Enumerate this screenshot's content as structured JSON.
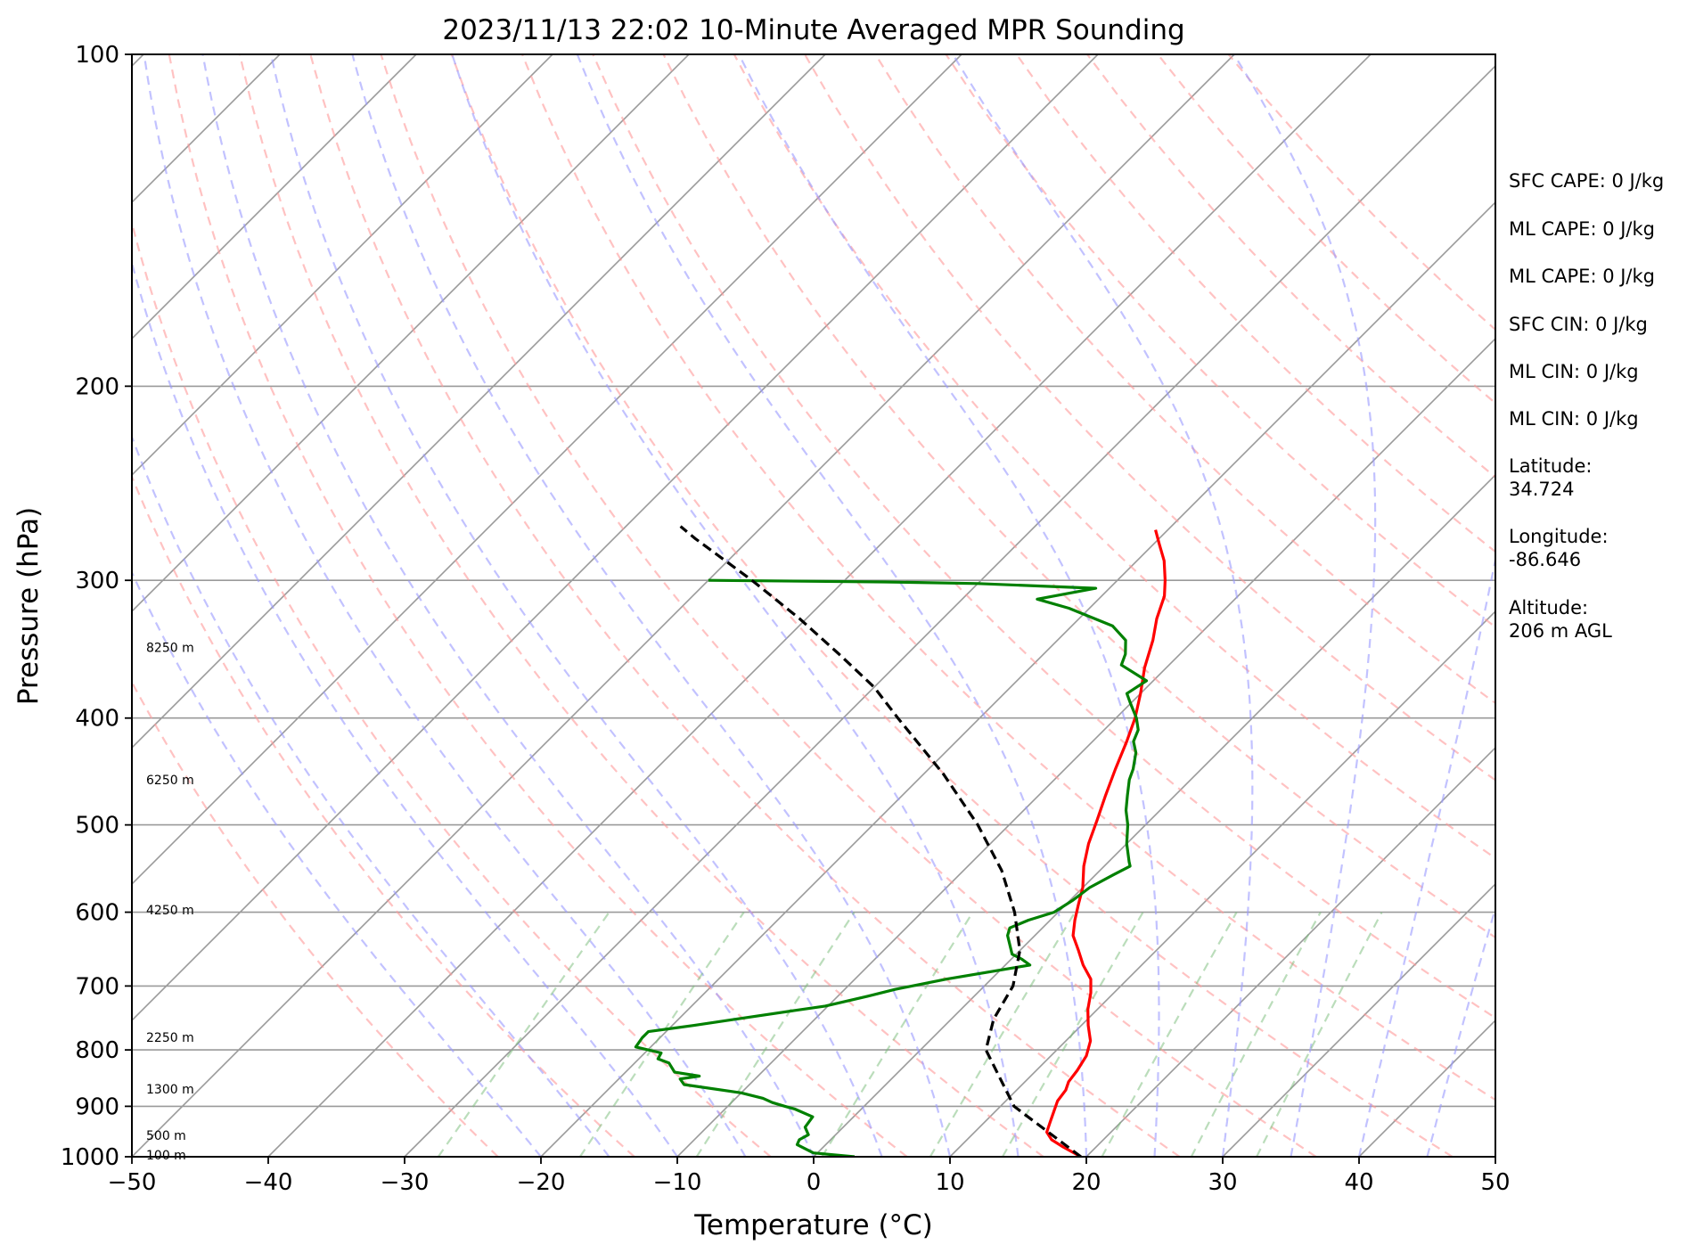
{
  "chart_data": {
    "type": "line",
    "title": "2023/11/13 22:02 10-Minute Averaged MPR Sounding",
    "xlabel": "Temperature (°C)",
    "ylabel": "Pressure (hPa)",
    "xlim": [
      -50,
      50
    ],
    "ylim": [
      1000,
      100
    ],
    "y_scale": "log",
    "grid": true,
    "x_ticks": [
      "−50",
      "−40",
      "−30",
      "−20",
      "−10",
      "0",
      "10",
      "20",
      "30",
      "40",
      "50"
    ],
    "y_ticks": [
      "100",
      "200",
      "300",
      "400",
      "500",
      "600",
      "700",
      "800",
      "900",
      "1000"
    ],
    "skew": 45,
    "series": [
      {
        "color": "#ff0000",
        "style": "solid",
        "points": [
          [
            19.6,
            1000
          ],
          [
            17.6,
            980
          ],
          [
            16.2,
            965
          ],
          [
            15.3,
            950
          ],
          [
            14.8,
            930
          ],
          [
            14.3,
            910
          ],
          [
            13.8,
            890
          ],
          [
            13.6,
            870
          ],
          [
            13.2,
            855
          ],
          [
            13.0,
            835
          ],
          [
            12.6,
            810
          ],
          [
            11.8,
            785
          ],
          [
            10.5,
            760
          ],
          [
            9.3,
            735
          ],
          [
            8.3,
            710
          ],
          [
            7.3,
            690
          ],
          [
            5.7,
            670
          ],
          [
            4.3,
            650
          ],
          [
            2.8,
            630
          ],
          [
            1.8,
            610
          ],
          [
            0.9,
            590
          ],
          [
            0.0,
            570
          ],
          [
            -1.5,
            545
          ],
          [
            -2.8,
            520
          ],
          [
            -3.9,
            495
          ],
          [
            -5.1,
            470
          ],
          [
            -6.3,
            445
          ],
          [
            -7.5,
            420
          ],
          [
            -8.6,
            400
          ],
          [
            -10.0,
            380
          ],
          [
            -11.6,
            360
          ],
          [
            -13.0,
            340
          ],
          [
            -14.3,
            325
          ],
          [
            -15.4,
            310
          ],
          [
            -16.5,
            300
          ],
          [
            -18.0,
            288
          ],
          [
            -19.6,
            278
          ],
          [
            -20.9,
            270
          ]
        ]
      },
      {
        "color": "#008000",
        "style": "solid",
        "points": [
          [
            3.0,
            1000
          ],
          [
            -0.3,
            992
          ],
          [
            -2.1,
            975
          ],
          [
            -2.3,
            965
          ],
          [
            -2.0,
            955
          ],
          [
            -2.8,
            940
          ],
          [
            -3.0,
            920
          ],
          [
            -4.9,
            905
          ],
          [
            -5.8,
            900
          ],
          [
            -7.0,
            893
          ],
          [
            -8.0,
            885
          ],
          [
            -10.0,
            875
          ],
          [
            -14.8,
            860
          ],
          [
            -15.5,
            850
          ],
          [
            -14.3,
            845
          ],
          [
            -16.4,
            838
          ],
          [
            -17.5,
            822
          ],
          [
            -18.6,
            815
          ],
          [
            -18.8,
            805
          ],
          [
            -21.1,
            795
          ],
          [
            -21.3,
            780
          ],
          [
            -21.3,
            770
          ],
          [
            -18.4,
            760
          ],
          [
            -16.3,
            752
          ],
          [
            -12.2,
            737
          ],
          [
            -10.2,
            730
          ],
          [
            -7.8,
            715
          ],
          [
            -6.3,
            705
          ],
          [
            -3.3,
            690
          ],
          [
            1.8,
            670
          ],
          [
            0.8,
            662
          ],
          [
            -0.3,
            655
          ],
          [
            -2.0,
            630
          ],
          [
            -2.4,
            620
          ],
          [
            -1.6,
            610
          ],
          [
            -0.3,
            600
          ],
          [
            0.2,
            585
          ],
          [
            0.5,
            570
          ],
          [
            1.3,
            555
          ],
          [
            1.9,
            545
          ],
          [
            1.5,
            540
          ],
          [
            0.0,
            520
          ],
          [
            -1.3,
            500
          ],
          [
            -2.5,
            485
          ],
          [
            -3.5,
            470
          ],
          [
            -4.5,
            455
          ],
          [
            -5.0,
            445
          ],
          [
            -6.0,
            430
          ],
          [
            -7.0,
            420
          ],
          [
            -7.5,
            410
          ],
          [
            -8.5,
            400
          ],
          [
            -10.0,
            388
          ],
          [
            -11.0,
            380
          ],
          [
            -10.5,
            370
          ],
          [
            -13.5,
            358
          ],
          [
            -14.0,
            350
          ],
          [
            -15.0,
            340
          ],
          [
            -17.0,
            330
          ],
          [
            -21.5,
            318
          ],
          [
            -24.5,
            312
          ],
          [
            -21.0,
            305
          ],
          [
            -30.0,
            302
          ],
          [
            -37.0,
            301
          ],
          [
            -50.0,
            300
          ]
        ]
      },
      {
        "color": "#000000",
        "style": "dashed",
        "points": [
          [
            19.6,
            1000
          ],
          [
            11.0,
            900
          ],
          [
            4.8,
            800
          ],
          [
            3.1,
            750
          ],
          [
            2.1,
            700
          ],
          [
            0.0,
            650
          ],
          [
            -3.2,
            600
          ],
          [
            -7.2,
            550
          ],
          [
            -12.3,
            500
          ],
          [
            -18.5,
            450
          ],
          [
            -26.0,
            400
          ],
          [
            -30.0,
            375
          ],
          [
            -35.0,
            350
          ],
          [
            -40.5,
            325
          ],
          [
            -46.8,
            300
          ],
          [
            -54.0,
            275
          ],
          [
            -56.0,
            268
          ]
        ]
      }
    ],
    "dry_adiabats_theta_K": [
      250,
      260,
      270,
      280,
      290,
      300,
      310,
      320,
      330,
      340,
      350,
      360,
      370,
      380,
      390,
      400,
      410,
      420,
      430
    ],
    "moist_adiabats_T0_C": [
      -20,
      -15,
      -10,
      -5,
      0,
      5,
      10,
      15,
      20,
      25,
      30,
      35,
      40,
      45
    ],
    "mixing_ratio_lines_gkg": [
      0.4,
      1,
      2,
      4,
      7,
      10,
      16,
      24,
      32
    ],
    "height_labels": [
      {
        "text": "8250 m",
        "p": 345
      },
      {
        "text": "6250 m",
        "p": 455
      },
      {
        "text": "4250 m",
        "p": 597
      },
      {
        "text": "2250 m",
        "p": 779
      },
      {
        "text": "1300 m",
        "p": 868
      },
      {
        "text": "500 m",
        "p": 956
      },
      {
        "text": "100 m",
        "p": 996
      }
    ]
  },
  "info_panel": [
    "SFC CAPE: 0 J/kg",
    "ML CAPE: 0 J/kg",
    "ML CAPE: 0 J/kg",
    "SFC CIN: 0 J/kg",
    "ML CIN: 0 J/kg",
    "ML CIN: 0 J/kg",
    "Latitude:",
    "34.724",
    "Longitude:",
    "-86.646",
    "Altitude:",
    "206 m AGL"
  ]
}
